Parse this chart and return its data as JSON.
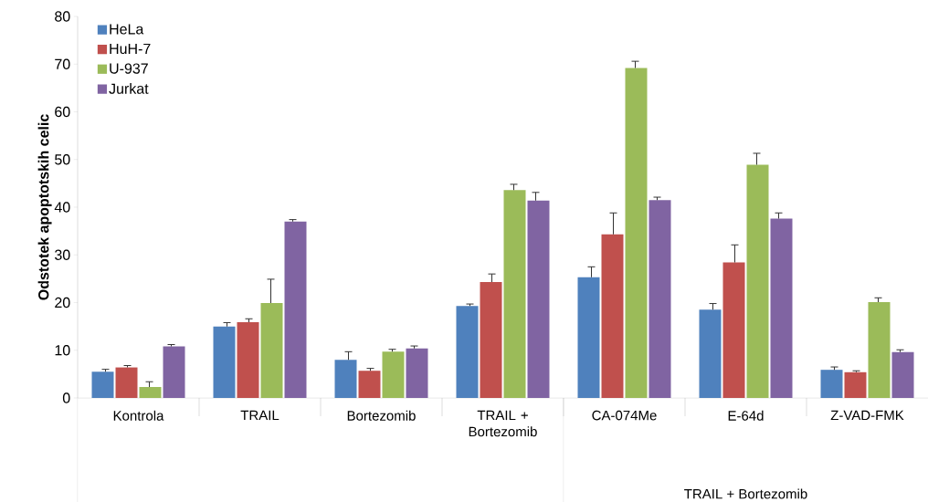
{
  "chart_data": {
    "type": "bar",
    "ylabel": "Odstotek apoptotskih celic",
    "categories": [
      "Kontrola",
      "TRAIL",
      "Bortezomib",
      "TRAIL + Bortezomib",
      "CA-074Me",
      "E-64d",
      "Z-VAD-FMK"
    ],
    "series": [
      {
        "name": "HeLa",
        "color": "#4f81bd",
        "values": [
          5.5,
          15.0,
          8.0,
          19.3,
          25.3,
          18.5,
          5.9
        ],
        "errors": [
          [
            5.5,
            6.0
          ],
          [
            15.0,
            15.8
          ],
          [
            8.0,
            9.7
          ],
          [
            19.3,
            19.7
          ],
          [
            25.3,
            27.5
          ],
          [
            18.5,
            19.8
          ],
          [
            5.9,
            6.5
          ]
        ]
      },
      {
        "name": "HuH-7",
        "color": "#c0504d",
        "values": [
          6.4,
          15.9,
          5.7,
          24.3,
          34.3,
          28.4,
          5.4
        ],
        "errors": [
          [
            6.4,
            6.8
          ],
          [
            15.9,
            16.6
          ],
          [
            5.7,
            6.2
          ],
          [
            24.3,
            26.0
          ],
          [
            34.3,
            38.8
          ],
          [
            28.4,
            32.1
          ],
          [
            5.4,
            5.7
          ]
        ]
      },
      {
        "name": "U-937",
        "color": "#9bbb59",
        "values": [
          2.3,
          19.9,
          9.7,
          43.6,
          69.2,
          48.9,
          20.1
        ],
        "errors": [
          [
            2.3,
            3.4
          ],
          [
            19.9,
            24.9
          ],
          [
            9.7,
            10.2
          ],
          [
            43.6,
            44.8
          ],
          [
            69.2,
            70.6
          ],
          [
            48.9,
            51.3
          ],
          [
            20.1,
            21.0
          ]
        ]
      },
      {
        "name": "Jurkat",
        "color": "#8064a2",
        "values": [
          10.8,
          37.0,
          10.4,
          41.4,
          41.5,
          37.6,
          9.6
        ],
        "errors": [
          [
            10.8,
            11.2
          ],
          [
            37.0,
            37.4
          ],
          [
            10.4,
            10.9
          ],
          [
            41.4,
            43.1
          ],
          [
            41.5,
            42.1
          ],
          [
            37.6,
            38.8
          ],
          [
            9.6,
            10.1
          ]
        ]
      }
    ],
    "ylim": [
      0,
      80
    ],
    "yticks": [
      0,
      10,
      20,
      30,
      40,
      50,
      60,
      70,
      80
    ],
    "grid": false,
    "legend": "top left",
    "annotations": [
      "TRAIL + Bortezomib"
    ]
  }
}
